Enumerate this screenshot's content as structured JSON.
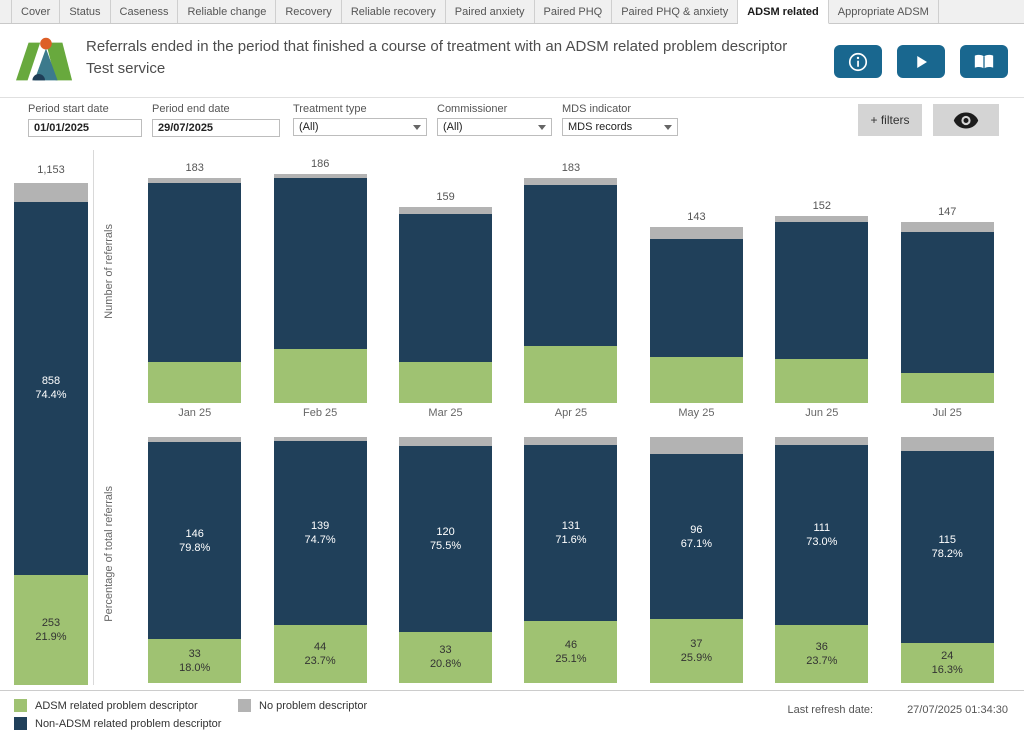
{
  "tabs": {
    "items": [
      {
        "label": "Cover",
        "active": false
      },
      {
        "label": "Status",
        "active": false
      },
      {
        "label": "Caseness",
        "active": false
      },
      {
        "label": "Reliable change",
        "active": false
      },
      {
        "label": "Recovery",
        "active": false
      },
      {
        "label": "Reliable recovery",
        "active": false
      },
      {
        "label": "Paired anxiety",
        "active": false
      },
      {
        "label": "Paired PHQ",
        "active": false
      },
      {
        "label": "Paired PHQ & anxiety",
        "active": false
      },
      {
        "label": "ADSM related",
        "active": true
      },
      {
        "label": "Appropriate ADSM",
        "active": false
      }
    ]
  },
  "header": {
    "title": "Referrals ended in the period that finished a course of treatment with an ADSM related problem descriptor",
    "subtitle": "Test service"
  },
  "filters": {
    "period_start": {
      "label": "Period start date",
      "value": "01/01/2025"
    },
    "period_end": {
      "label": "Period end date",
      "value": "29/07/2025"
    },
    "treatment_type": {
      "label": "Treatment type",
      "value": "(All)"
    },
    "commissioner": {
      "label": "Commissioner",
      "value": "(All)"
    },
    "mds_indicator": {
      "label": "MDS indicator",
      "value": "MDS records"
    },
    "add_filters_label": "+ filters"
  },
  "colors": {
    "green": "#9fc272",
    "navy": "#20405a",
    "gray": "#b3b3b3",
    "accent_blue": "#19678f"
  },
  "chart_data": [
    {
      "id": "overall-stacked-bar",
      "type": "bar",
      "stacked": "percent",
      "categories": [
        ""
      ],
      "total": 1153,
      "total_label": "1,153",
      "segments": [
        {
          "name": "ADSM related problem descriptor",
          "color_key": "green",
          "value": 253,
          "pct": 21.9,
          "label_visible": true
        },
        {
          "name": "Non-ADSM related problem descriptor",
          "color_key": "navy",
          "value": 858,
          "pct": 74.4,
          "label_visible": true
        },
        {
          "name": "No problem descriptor",
          "color_key": "gray",
          "value": 42,
          "pct": 3.7,
          "label_visible": false
        }
      ]
    },
    {
      "id": "monthly-counts",
      "type": "bar",
      "stacked": true,
      "ylabel": "Number of referrals",
      "categories": [
        "Jan 25",
        "Feb 25",
        "Mar 25",
        "Apr 25",
        "May 25",
        "Jun 25",
        "Jul 25"
      ],
      "totals": [
        183,
        186,
        159,
        183,
        143,
        152,
        147
      ],
      "ylim": [
        0,
        186
      ],
      "series": [
        {
          "name": "ADSM related problem descriptor",
          "color_key": "green",
          "values": [
            33,
            44,
            33,
            46,
            37,
            36,
            24
          ]
        },
        {
          "name": "Non-ADSM related problem descriptor",
          "color_key": "navy",
          "values": [
            146,
            139,
            120,
            131,
            96,
            111,
            115
          ]
        },
        {
          "name": "No problem descriptor",
          "color_key": "gray",
          "values": [
            4,
            3,
            6,
            6,
            10,
            5,
            8
          ]
        }
      ]
    },
    {
      "id": "monthly-percentage",
      "type": "bar",
      "stacked": "percent",
      "ylabel": "Percentage of total referrals",
      "categories": [
        "Jan 25",
        "Feb 25",
        "Mar 25",
        "Apr 25",
        "May 25",
        "Jun 25",
        "Jul 25"
      ],
      "ylim": [
        0,
        100
      ],
      "series": [
        {
          "name": "ADSM related problem descriptor",
          "color_key": "green",
          "values": [
            33,
            44,
            33,
            46,
            37,
            36,
            24
          ],
          "pcts": [
            18.0,
            23.7,
            20.8,
            25.1,
            25.9,
            23.7,
            16.3
          ],
          "labels_visible": true
        },
        {
          "name": "Non-ADSM related problem descriptor",
          "color_key": "navy",
          "values": [
            146,
            139,
            120,
            131,
            96,
            111,
            115
          ],
          "pcts": [
            79.8,
            74.7,
            75.5,
            71.6,
            67.1,
            73.0,
            78.2
          ],
          "labels_visible": true
        },
        {
          "name": "No problem descriptor",
          "color_key": "gray",
          "values": [
            4,
            3,
            6,
            6,
            10,
            5,
            8
          ],
          "pcts": [
            2.2,
            1.6,
            3.7,
            3.3,
            7.0,
            3.3,
            5.5
          ],
          "labels_visible": false
        }
      ]
    }
  ],
  "legend": {
    "items": [
      {
        "label": "ADSM related problem descriptor",
        "color": "#9fc272"
      },
      {
        "label": "Non-ADSM related problem descriptor",
        "color": "#20405a"
      },
      {
        "label": "No problem descriptor",
        "color": "#b3b3b3"
      }
    ]
  },
  "footer": {
    "refresh_label": "Last refresh date:",
    "refresh_value": "27/07/2025 01:34:30"
  }
}
